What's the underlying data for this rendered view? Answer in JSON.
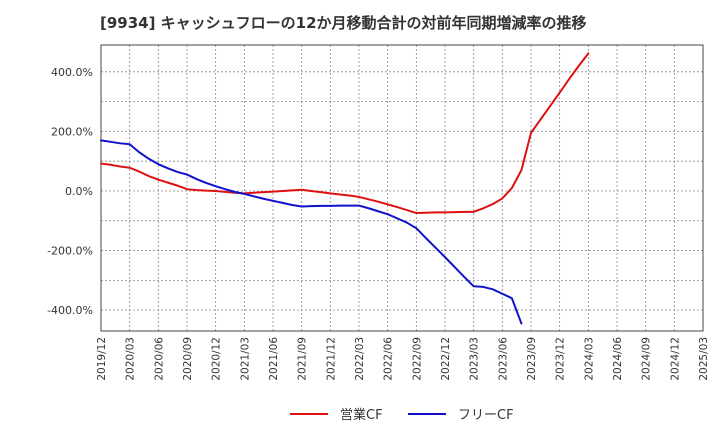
{
  "title": "[9934]  キャッシュフローの12か月移動合計の対前年同期増減率の推移",
  "chart_data": {
    "type": "line",
    "title": "[9934]  キャッシュフローの12か月移動合計の対前年同期増減率の推移",
    "xlabel": "",
    "ylabel": "",
    "ylim": [
      -470,
      490
    ],
    "y_ticks": [
      {
        "value": 400,
        "label": "400.0%"
      },
      {
        "value": 200,
        "label": "200.0%"
      },
      {
        "value": 0,
        "label": "0.0%"
      },
      {
        "value": -200,
        "label": "-200.0%"
      },
      {
        "value": -400,
        "label": "-400.0%"
      }
    ],
    "x_ticks": [
      "2019/12",
      "2020/03",
      "2020/06",
      "2020/09",
      "2020/12",
      "2021/03",
      "2021/06",
      "2021/09",
      "2021/12",
      "2022/03",
      "2022/06",
      "2022/09",
      "2022/12",
      "2023/03",
      "2023/06",
      "2023/09",
      "2023/12",
      "2024/03",
      "2024/06",
      "2024/09",
      "2024/12",
      "2025/03"
    ],
    "grid": true,
    "legend_position": "bottom",
    "series": [
      {
        "name": "営業CF",
        "color": "#dd1111",
        "points": [
          [
            "2019/12",
            92
          ],
          [
            "2020/01",
            88
          ],
          [
            "2020/02",
            82
          ],
          [
            "2020/03",
            78
          ],
          [
            "2020/04",
            65
          ],
          [
            "2020/05",
            50
          ],
          [
            "2020/06",
            38
          ],
          [
            "2020/07",
            28
          ],
          [
            "2020/08",
            18
          ],
          [
            "2020/09",
            6
          ],
          [
            "2020/10",
            3
          ],
          [
            "2020/11",
            1
          ],
          [
            "2020/12",
            0
          ],
          [
            "2021/01",
            -3
          ],
          [
            "2021/02",
            -6
          ],
          [
            "2021/03",
            -8
          ],
          [
            "2021/04",
            -6
          ],
          [
            "2021/05",
            -4
          ],
          [
            "2021/06",
            -2
          ],
          [
            "2021/07",
            0
          ],
          [
            "2021/08",
            2
          ],
          [
            "2021/09",
            4
          ],
          [
            "2021/10",
            0
          ],
          [
            "2021/11",
            -4
          ],
          [
            "2021/12",
            -8
          ],
          [
            "2022/01",
            -12
          ],
          [
            "2022/02",
            -15
          ],
          [
            "2022/03",
            -20
          ],
          [
            "2022/04",
            -28
          ],
          [
            "2022/05",
            -36
          ],
          [
            "2022/06",
            -45
          ],
          [
            "2022/07",
            -54
          ],
          [
            "2022/08",
            -64
          ],
          [
            "2022/09",
            -74
          ],
          [
            "2022/10",
            -73
          ],
          [
            "2022/11",
            -72
          ],
          [
            "2022/12",
            -72
          ],
          [
            "2023/01",
            -71
          ],
          [
            "2023/02",
            -70
          ],
          [
            "2023/03",
            -70
          ],
          [
            "2023/04",
            -58
          ],
          [
            "2023/05",
            -44
          ],
          [
            "2023/06",
            -25
          ],
          [
            "2023/07",
            10
          ],
          [
            "2023/08",
            70
          ],
          [
            "2023/09",
            195
          ],
          [
            "2023/10",
            240
          ],
          [
            "2023/11",
            285
          ],
          [
            "2023/12",
            330
          ],
          [
            "2024/01",
            376
          ],
          [
            "2024/02",
            420
          ],
          [
            "2024/03",
            462
          ]
        ]
      },
      {
        "name": "フリーCF",
        "color": "#1111cc",
        "points": [
          [
            "2019/12",
            170
          ],
          [
            "2020/01",
            165
          ],
          [
            "2020/02",
            160
          ],
          [
            "2020/03",
            157
          ],
          [
            "2020/04",
            130
          ],
          [
            "2020/05",
            108
          ],
          [
            "2020/06",
            90
          ],
          [
            "2020/07",
            76
          ],
          [
            "2020/08",
            64
          ],
          [
            "2020/09",
            55
          ],
          [
            "2020/10",
            40
          ],
          [
            "2020/11",
            27
          ],
          [
            "2020/12",
            16
          ],
          [
            "2021/01",
            6
          ],
          [
            "2021/02",
            -3
          ],
          [
            "2021/03",
            -10
          ],
          [
            "2021/04",
            -18
          ],
          [
            "2021/05",
            -26
          ],
          [
            "2021/06",
            -33
          ],
          [
            "2021/07",
            -40
          ],
          [
            "2021/08",
            -47
          ],
          [
            "2021/09",
            -52
          ],
          [
            "2021/10",
            -51
          ],
          [
            "2021/11",
            -50
          ],
          [
            "2021/12",
            -50
          ],
          [
            "2022/01",
            -49
          ],
          [
            "2022/02",
            -49
          ],
          [
            "2022/03",
            -49
          ],
          [
            "2022/04",
            -58
          ],
          [
            "2022/05",
            -68
          ],
          [
            "2022/06",
            -78
          ],
          [
            "2022/07",
            -92
          ],
          [
            "2022/08",
            -106
          ],
          [
            "2022/09",
            -125
          ],
          [
            "2022/10",
            -158
          ],
          [
            "2022/11",
            -190
          ],
          [
            "2022/12",
            -222
          ],
          [
            "2023/01",
            -255
          ],
          [
            "2023/02",
            -288
          ],
          [
            "2023/03",
            -320
          ],
          [
            "2023/04",
            -322
          ],
          [
            "2023/05",
            -330
          ],
          [
            "2023/06",
            -345
          ],
          [
            "2023/07",
            -360
          ],
          [
            "2023/08",
            -445
          ]
        ]
      }
    ]
  }
}
